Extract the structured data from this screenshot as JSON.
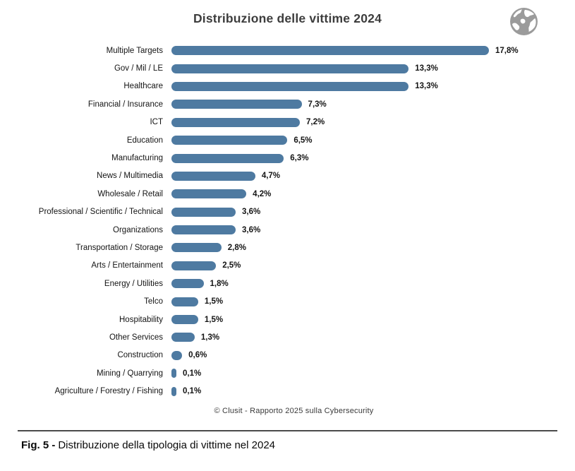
{
  "header": {
    "title": "Distribuzione delle vittime 2024"
  },
  "chart_data": {
    "type": "bar",
    "orientation": "horizontal",
    "title": "Distribuzione delle vittime 2024",
    "xlabel": "",
    "ylabel": "",
    "xlim": [
      0,
      18
    ],
    "grid": false,
    "legend": false,
    "bar_color": "#4e7aa1",
    "categories": [
      "Multiple Targets",
      "Gov / Mil / LE",
      "Healthcare",
      "Financial / Insurance",
      "ICT",
      "Education",
      "Manufacturing",
      "News / Multimedia",
      "Wholesale / Retail",
      "Professional / Scientific / Technical",
      "Organizations",
      "Transportation / Storage",
      "Arts / Entertainment",
      "Energy / Utilities",
      "Telco",
      "Hospitability",
      "Other Services",
      "Construction",
      "Mining / Quarrying",
      "Agriculture / Forestry / Fishing"
    ],
    "values": [
      17.8,
      13.3,
      13.3,
      7.3,
      7.2,
      6.5,
      6.3,
      4.7,
      4.2,
      3.6,
      3.6,
      2.8,
      2.5,
      1.8,
      1.5,
      1.5,
      1.3,
      0.6,
      0.1,
      0.1
    ],
    "value_labels": [
      "17,8%",
      "13,3%",
      "13,3%",
      "7,3%",
      "7,2%",
      "6,5%",
      "6,3%",
      "4,7%",
      "4,2%",
      "3,6%",
      "3,6%",
      "2,8%",
      "2,5%",
      "1,8%",
      "1,5%",
      "1,5%",
      "1,3%",
      "0,6%",
      "0,1%",
      "0,1%"
    ]
  },
  "footer": {
    "credit": "© Clusit - Rapporto 2025 sulla Cybersecurity"
  },
  "caption": {
    "label": "Fig. 5 -",
    "text": "Distribuzione della tipologia di vittime nel 2024"
  }
}
